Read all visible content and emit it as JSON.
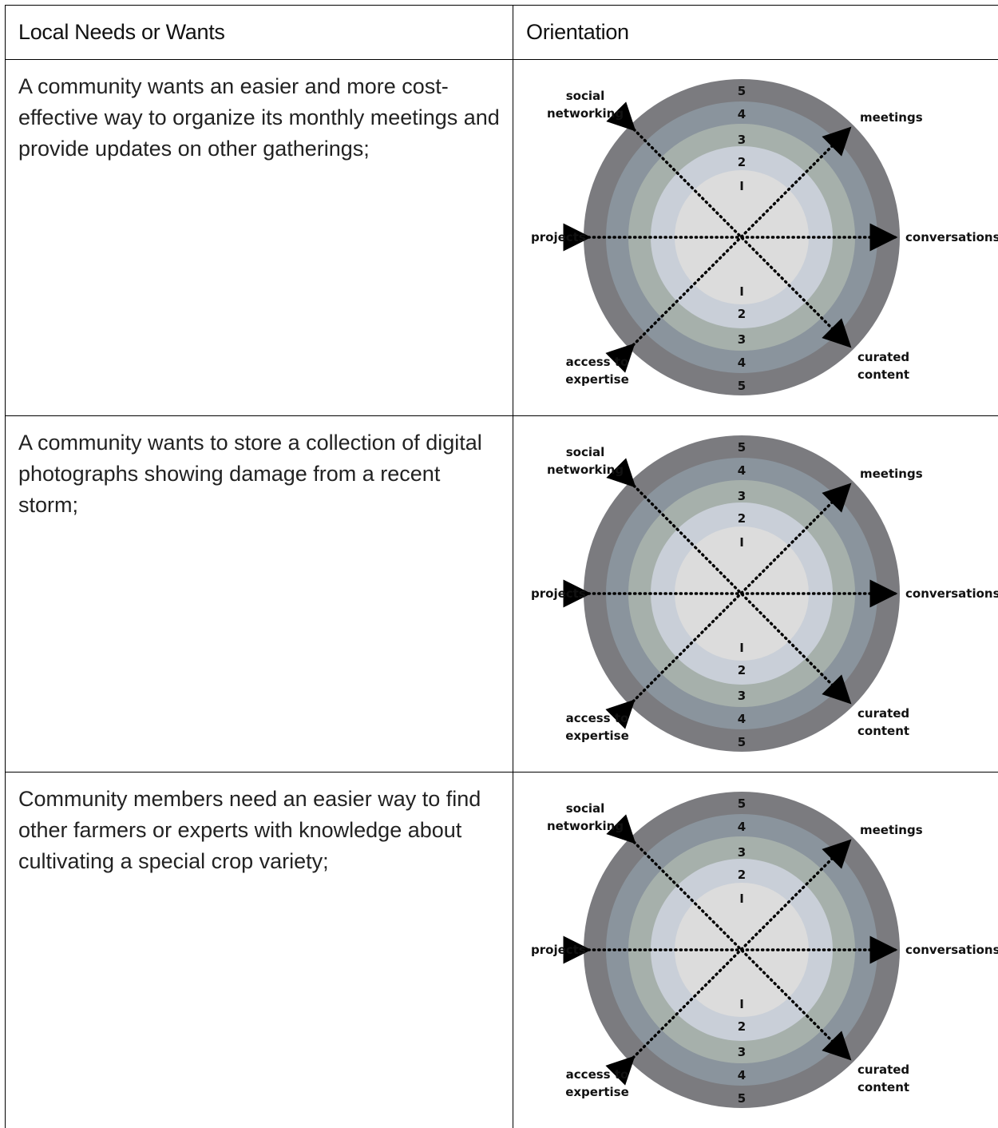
{
  "table": {
    "headers": {
      "left": "Local Needs or Wants",
      "right": "Orientation"
    },
    "rows": [
      {
        "need": "A community wants an easier and more cost-effective way to organize its monthly meetings and provide updates on other gatherings;"
      },
      {
        "need": "A community wants to store a collection of digital photographs showing damage from a recent storm;"
      },
      {
        "need": "Community members need an easier way to find other farmers or experts with knowledge about cultivating a special crop variety;"
      }
    ]
  },
  "diagram": {
    "labels": {
      "social_1": "social",
      "social_2": "networking",
      "meetings": "meetings",
      "projects": "projects",
      "conversations": "conversations",
      "access_1": "access to",
      "access_2": "expertise",
      "curated_1": "curated",
      "curated_2": "content"
    },
    "ring_numbers_top": [
      "5",
      "4",
      "3",
      "2",
      "I"
    ],
    "ring_numbers_bottom": [
      "I",
      "2",
      "3",
      "4",
      "5"
    ],
    "ring_colors": [
      "#7b7b7f",
      "#8a949d",
      "#a6b0ab",
      "#c9cfd8",
      "#dcdcdc"
    ]
  }
}
